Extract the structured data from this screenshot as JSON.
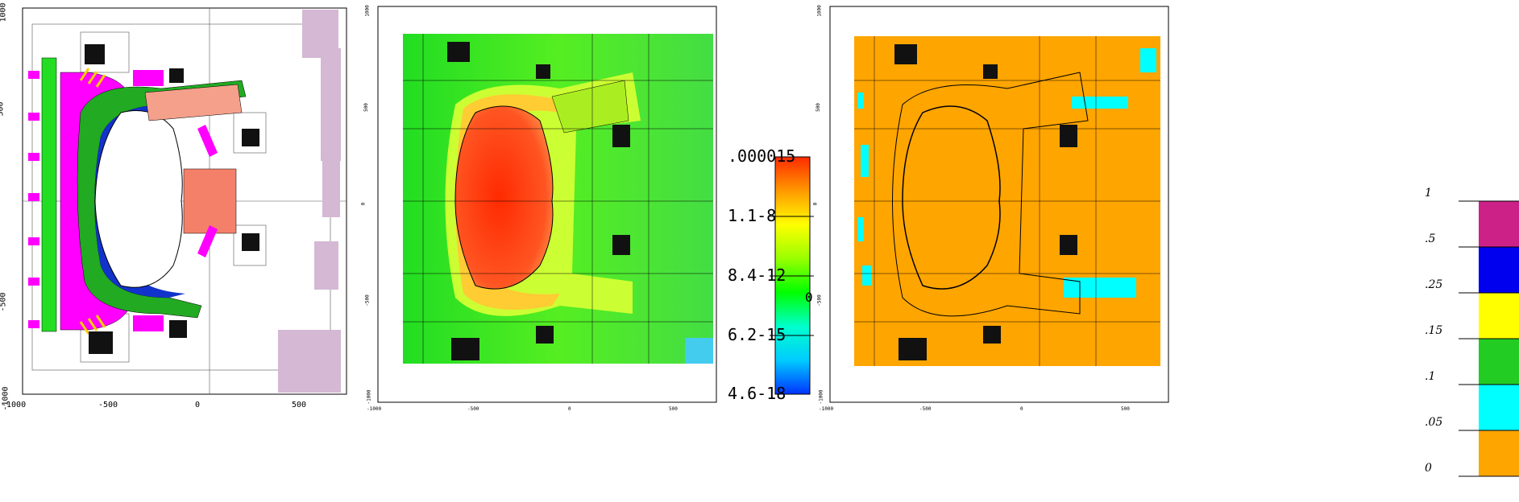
{
  "panel_geometry": {
    "y_ticks": [
      "1000",
      "500",
      "0",
      "-500",
      "-1000"
    ],
    "x_ticks": [
      "-1000",
      "-500",
      "0",
      "500"
    ]
  },
  "panel_flux": {
    "y_ticks": [
      "1000",
      "500",
      "0",
      "-500",
      "-1000"
    ],
    "x_ticks": [
      "-1000",
      "-500",
      "0",
      "500"
    ]
  },
  "panel_fraction": {
    "y_ticks": [
      "1000",
      "500",
      "0",
      "-500",
      "-1000"
    ],
    "x_ticks": [
      "-1000",
      "-500",
      "0",
      "500"
    ]
  },
  "flux_colorbar": {
    "labels": [
      ".000015",
      "1.1-8",
      "8.4-12",
      "6.2-15",
      "4.6-18"
    ],
    "side_marker": "0",
    "colors": [
      "#ff2a00",
      "#ff9900",
      "#ffff00",
      "#99ff00",
      "#00ff00",
      "#00ffcc",
      "#00ccff",
      "#0033ff"
    ]
  },
  "fraction_legend": {
    "labels": [
      "1",
      ".5",
      ".25",
      ".15",
      ".1",
      ".05",
      "0"
    ],
    "colors": [
      "#cc2288",
      "#0000ee",
      "#ffff00",
      "#22cc22",
      "#00ffff",
      "#ffa500"
    ]
  }
}
